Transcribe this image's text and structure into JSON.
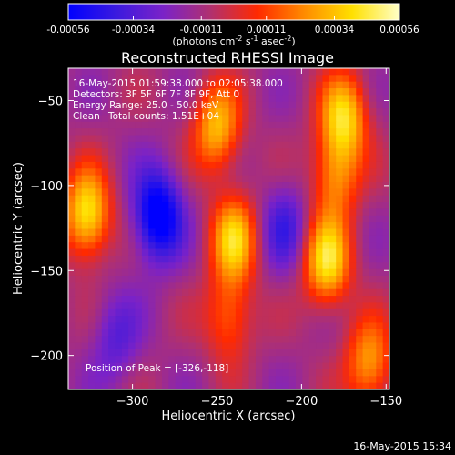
{
  "colorbar": {
    "tick_labels": [
      "-0.00056",
      "-0.00034",
      "-0.00011",
      "0.00011",
      "0.00034",
      "0.00056"
    ],
    "tick_values": [
      -0.00056,
      -0.00034,
      -0.00011,
      0.00011,
      0.00034,
      0.00056
    ],
    "range": [
      -0.00056,
      0.00056
    ],
    "units_prefix": "(photons cm",
    "units_exp1": "-2",
    "units_mid": " s",
    "units_exp2": "-1",
    "units_mid2": " asec",
    "units_exp3": "-2",
    "units_suffix": ")",
    "palette": [
      "#0000ff",
      "#3a1adf",
      "#7a22c8",
      "#b03070",
      "#ff2a00",
      "#ff8c00",
      "#ffe000",
      "#ffffc8"
    ]
  },
  "chart_data": {
    "type": "heatmap",
    "title": "Reconstructed RHESSI Image",
    "xlabel": "Heliocentric X (arcsec)",
    "ylabel": "Heliocentric Y (arcsec)",
    "xlim": [
      -338,
      -148
    ],
    "ylim": [
      -220,
      -31
    ],
    "x_ticks": [
      -300,
      -250,
      -200,
      -150
    ],
    "x_tick_labels": [
      "−300",
      "−250",
      "−200",
      "−150"
    ],
    "y_ticks": [
      -50,
      -100,
      -150,
      -200
    ],
    "y_tick_labels": [
      "−50",
      "−100",
      "−150",
      "−200"
    ],
    "bright_sources": [
      {
        "x": -327,
        "y": -117,
        "peak": 0.00056
      },
      {
        "x": -250,
        "y": -66,
        "peak": 0.00045
      },
      {
        "x": -240,
        "y": -132,
        "peak": 0.00048
      },
      {
        "x": -243,
        "y": -178,
        "peak": 0.0003
      },
      {
        "x": -175,
        "y": -60,
        "peak": 0.0005
      },
      {
        "x": -180,
        "y": -95,
        "peak": 0.00035
      },
      {
        "x": -185,
        "y": -145,
        "peak": 0.00054
      },
      {
        "x": -160,
        "y": -205,
        "peak": 0.0004
      }
    ],
    "dark_sources": [
      {
        "x": -285,
        "y": -118,
        "peak": -0.00054
      },
      {
        "x": -210,
        "y": -125,
        "peak": -0.00025
      },
      {
        "x": -310,
        "y": -190,
        "peak": -0.0002
      }
    ]
  },
  "info": {
    "line1": "16-May-2015 01:59:38.000 to 02:05:38.000",
    "line2": "Detectors: 3F 5F 6F 7F 8F 9F, Att 0",
    "line3": "Energy Range: 25.0 - 50.0 keV",
    "line4_method": "Clean",
    "line4_counts": "Total counts: 1.51E+04",
    "peak": "Position of Peak = [-326,-118]"
  },
  "footer": {
    "timestamp": "16-May-2015 15:34"
  }
}
